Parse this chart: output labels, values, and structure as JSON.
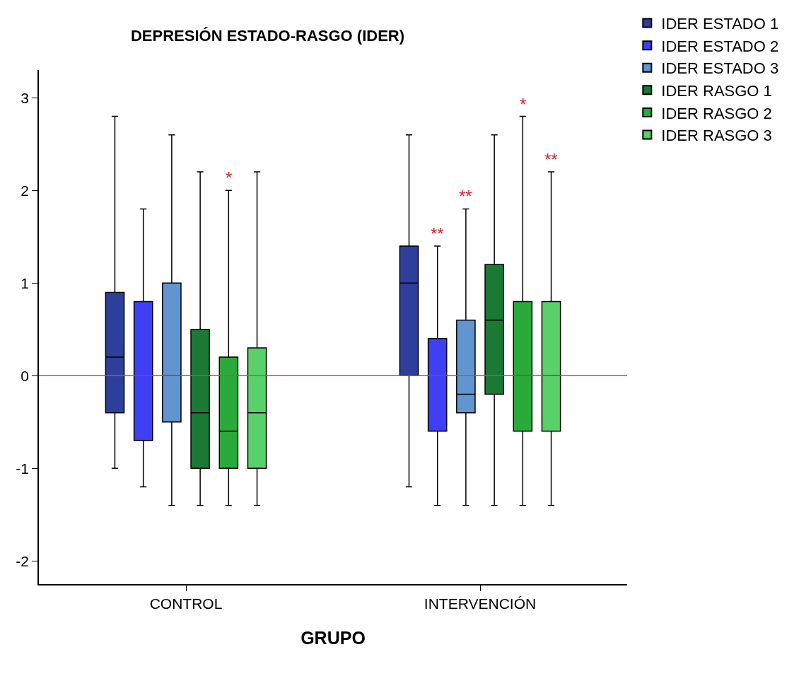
{
  "chart_data": {
    "type": "box",
    "title": "DEPRESIÓN ESTADO-RASGO (IDER)",
    "xlabel": "GRUPO",
    "categories": [
      "CONTROL",
      "INTERVENCIÓN"
    ],
    "series": [
      {
        "name": "IDER ESTADO 1",
        "color": "#2e3f9a",
        "boxes": [
          {
            "low": -1,
            "q1": -0.4,
            "median": 0.2,
            "q3": 0.9,
            "high": 2.8
          },
          {
            "low": -1.2,
            "q1": 0,
            "median": 1,
            "q3": 1.4,
            "high": 2.6
          }
        ]
      },
      {
        "name": "IDER ESTADO 2",
        "color": "#3f3ff5",
        "boxes": [
          {
            "low": -1.2,
            "q1": -0.7,
            "median": 0,
            "q3": 0.8,
            "high": 1.8
          },
          {
            "low": -1.4,
            "q1": -0.6,
            "median": 0,
            "q3": 0.4,
            "high": 1.4
          }
        ],
        "value_labels": [
          null,
          "**"
        ]
      },
      {
        "name": "IDER ESTADO 3",
        "color": "#6195d2",
        "boxes": [
          {
            "low": -1.4,
            "q1": -0.5,
            "median": 0,
            "q3": 1,
            "high": 2.6
          },
          {
            "low": -1.4,
            "q1": -0.4,
            "median": -0.2,
            "q3": 0.6,
            "high": 1.8
          }
        ],
        "value_labels": [
          null,
          "**"
        ]
      },
      {
        "name": "IDER RASGO 1",
        "color": "#1a7a35",
        "boxes": [
          {
            "low": -1.4,
            "q1": -1,
            "median": -0.4,
            "q3": 0.5,
            "high": 2.2
          },
          {
            "low": -1.4,
            "q1": -0.2,
            "median": 0.6,
            "q3": 1.2,
            "high": 2.6
          }
        ]
      },
      {
        "name": "IDER RASGO 2",
        "color": "#2aaa3a",
        "boxes": [
          {
            "low": -1.4,
            "q1": -1,
            "median": -0.6,
            "q3": 0.2,
            "high": 2
          },
          {
            "low": -1.4,
            "q1": -0.6,
            "median": 0,
            "q3": 0.8,
            "high": 2.8
          }
        ],
        "value_labels": [
          "*",
          "*"
        ]
      },
      {
        "name": "IDER RASGO 3",
        "color": "#5ad06a",
        "boxes": [
          {
            "low": -1.4,
            "q1": -1,
            "median": -0.4,
            "q3": 0.3,
            "high": 2.2
          },
          {
            "low": -1.4,
            "q1": -0.6,
            "median": 0,
            "q3": 0.8,
            "high": 2.2
          }
        ],
        "value_labels": [
          null,
          "**"
        ]
      }
    ],
    "ylim": [
      -2.25,
      3.3
    ],
    "yticks": [
      -2,
      -1,
      0,
      1,
      2,
      3
    ],
    "ref_lines": [
      {
        "axis": "y",
        "value": 0,
        "color": "#e04040"
      }
    ],
    "legend": "top right"
  }
}
